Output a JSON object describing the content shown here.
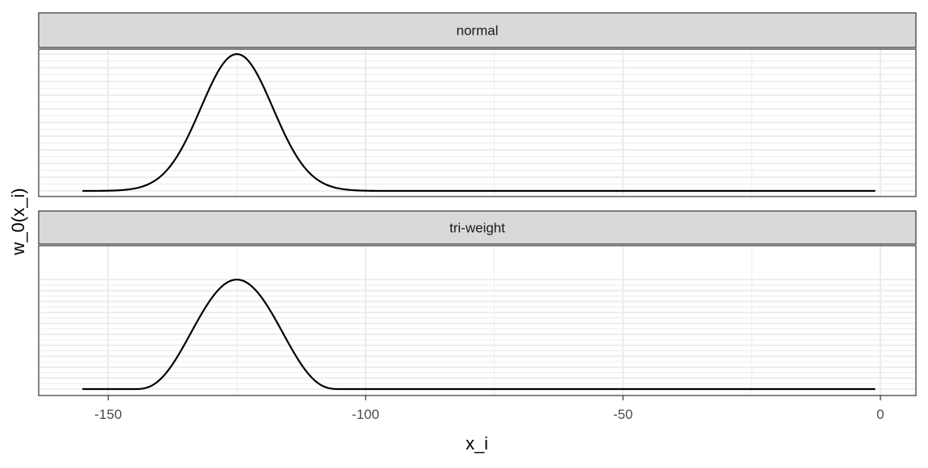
{
  "chart_data": {
    "type": "line",
    "xlabel": "x_i",
    "ylabel": "w_0(x_i)",
    "xlim": [
      -163.5,
      6.9
    ],
    "x_ticks": [
      -150,
      -100,
      -50,
      0
    ],
    "x_tick_labels": [
      "-150",
      "-100",
      "-50",
      "0"
    ],
    "x_minor_ticks": [
      -125,
      -75,
      -25
    ],
    "x_range": [
      -155,
      -1
    ],
    "grid": true,
    "facets": [
      {
        "label": "normal",
        "kernel": "normal",
        "center": -125,
        "scale": 7,
        "ylim": [
          -0.041,
          1.036
        ]
      },
      {
        "label": "tri-weight",
        "kernel": "triweight",
        "center": -125,
        "scale": 20,
        "ylim": [
          -0.059,
          1.31
        ]
      }
    ]
  },
  "colors": {
    "strip": "#d9d9d9",
    "line": "#000000",
    "grid": "#ebebeb",
    "border": "#333333"
  }
}
